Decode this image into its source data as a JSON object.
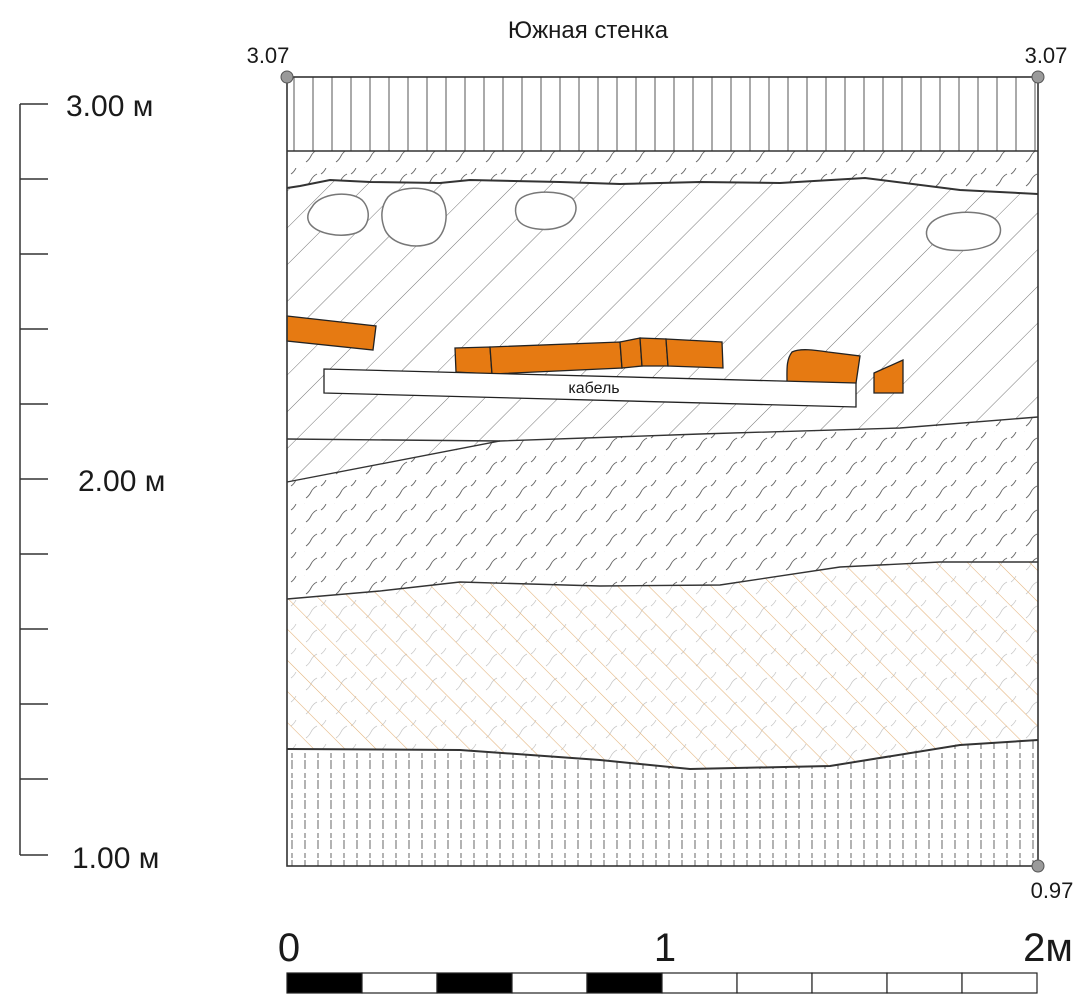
{
  "title": "Южная стенка",
  "markers": {
    "top_left": "3.07",
    "top_right": "3.07",
    "bottom_right": "0.97"
  },
  "depth_scale": {
    "labels": [
      "3.00 м",
      "2.00 м",
      "1.00 м"
    ]
  },
  "profile_labels": {
    "cable": "кабель"
  },
  "scale_bar": {
    "labels": [
      "0",
      "1",
      "2м"
    ],
    "segments": 10
  },
  "colors": {
    "brick": "#e67a12",
    "clay_hatch": "#e3b27a",
    "line": "#333333",
    "hatch": "#555555"
  }
}
